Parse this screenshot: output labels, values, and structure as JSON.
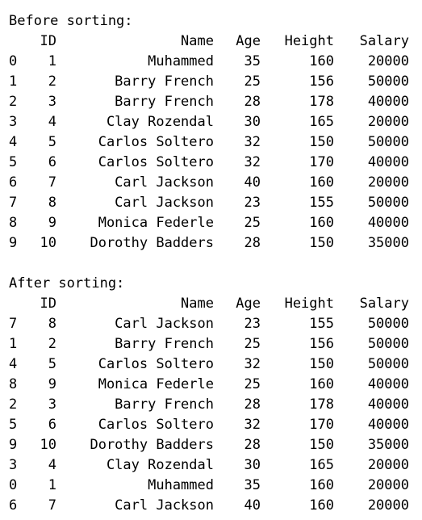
{
  "columns": [
    "ID",
    "Name",
    "Age",
    "Height",
    "Salary"
  ],
  "before": {
    "title": "Before sorting:",
    "rows": [
      {
        "index": "0",
        "ID": "1",
        "Name": "Muhammed",
        "Age": "35",
        "Height": "160",
        "Salary": "20000"
      },
      {
        "index": "1",
        "ID": "2",
        "Name": "Barry French",
        "Age": "25",
        "Height": "156",
        "Salary": "50000"
      },
      {
        "index": "2",
        "ID": "3",
        "Name": "Barry French",
        "Age": "28",
        "Height": "178",
        "Salary": "40000"
      },
      {
        "index": "3",
        "ID": "4",
        "Name": "Clay Rozendal",
        "Age": "30",
        "Height": "165",
        "Salary": "20000"
      },
      {
        "index": "4",
        "ID": "5",
        "Name": "Carlos Soltero",
        "Age": "32",
        "Height": "150",
        "Salary": "50000"
      },
      {
        "index": "5",
        "ID": "6",
        "Name": "Carlos Soltero",
        "Age": "32",
        "Height": "170",
        "Salary": "40000"
      },
      {
        "index": "6",
        "ID": "7",
        "Name": "Carl Jackson",
        "Age": "40",
        "Height": "160",
        "Salary": "20000"
      },
      {
        "index": "7",
        "ID": "8",
        "Name": "Carl Jackson",
        "Age": "23",
        "Height": "155",
        "Salary": "50000"
      },
      {
        "index": "8",
        "ID": "9",
        "Name": "Monica Federle",
        "Age": "25",
        "Height": "160",
        "Salary": "40000"
      },
      {
        "index": "9",
        "ID": "10",
        "Name": "Dorothy Badders",
        "Age": "28",
        "Height": "150",
        "Salary": "35000"
      }
    ]
  },
  "after": {
    "title": "After sorting:",
    "rows": [
      {
        "index": "7",
        "ID": "8",
        "Name": "Carl Jackson",
        "Age": "23",
        "Height": "155",
        "Salary": "50000"
      },
      {
        "index": "1",
        "ID": "2",
        "Name": "Barry French",
        "Age": "25",
        "Height": "156",
        "Salary": "50000"
      },
      {
        "index": "4",
        "ID": "5",
        "Name": "Carlos Soltero",
        "Age": "32",
        "Height": "150",
        "Salary": "50000"
      },
      {
        "index": "8",
        "ID": "9",
        "Name": "Monica Federle",
        "Age": "25",
        "Height": "160",
        "Salary": "40000"
      },
      {
        "index": "2",
        "ID": "3",
        "Name": "Barry French",
        "Age": "28",
        "Height": "178",
        "Salary": "40000"
      },
      {
        "index": "5",
        "ID": "6",
        "Name": "Carlos Soltero",
        "Age": "32",
        "Height": "170",
        "Salary": "40000"
      },
      {
        "index": "9",
        "ID": "10",
        "Name": "Dorothy Badders",
        "Age": "28",
        "Height": "150",
        "Salary": "35000"
      },
      {
        "index": "3",
        "ID": "4",
        "Name": "Clay Rozendal",
        "Age": "30",
        "Height": "165",
        "Salary": "20000"
      },
      {
        "index": "0",
        "ID": "1",
        "Name": "Muhammed",
        "Age": "35",
        "Height": "160",
        "Salary": "20000"
      },
      {
        "index": "6",
        "ID": "7",
        "Name": "Carl Jackson",
        "Age": "40",
        "Height": "160",
        "Salary": "20000"
      }
    ]
  }
}
